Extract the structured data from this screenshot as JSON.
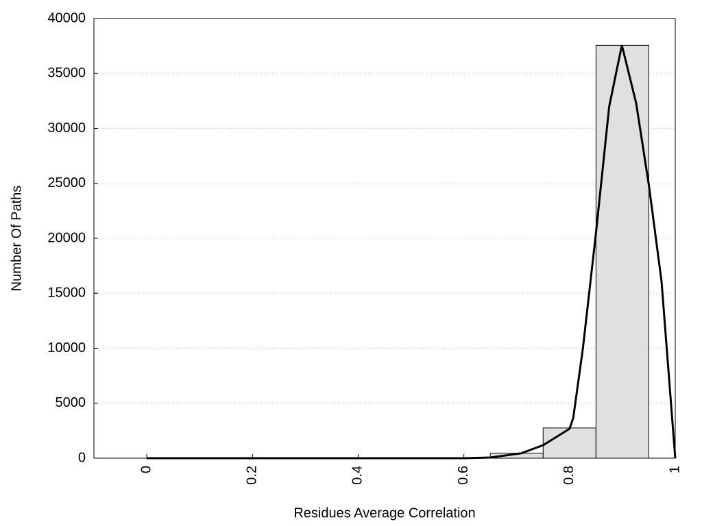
{
  "chart_data": {
    "type": "histogram",
    "x_label": "Residues Average Correlation",
    "y_label": "Number Of Paths",
    "bins": [
      -0.05,
      0.05,
      0.15,
      0.25,
      0.35,
      0.45,
      0.55,
      0.65,
      0.75,
      0.85,
      0.95
    ],
    "values": [
      0,
      0,
      0,
      0,
      0,
      0,
      0,
      450,
      2750,
      37550
    ],
    "color": "#e0e0e0",
    "line": {
      "color": "#000000",
      "x": [
        0,
        0.1,
        0.2,
        0.3,
        0.4,
        0.5,
        0.6,
        0.65,
        0.708,
        0.75,
        0.8,
        0.807,
        0.825,
        0.85,
        0.875,
        0.899,
        0.926,
        0.95,
        0.974,
        1
      ],
      "values": [
        0,
        0,
        0,
        0,
        0,
        0,
        0,
        60,
        440,
        1180,
        2680,
        3680,
        9900,
        20500,
        32000,
        37570,
        32300,
        24860,
        16100,
        0
      ]
    },
    "xlim": [
      -0.1,
      1
    ],
    "ylim": [
      0,
      40000
    ],
    "xticks": [
      0,
      0.2,
      0.4,
      0.6,
      0.8,
      1
    ],
    "yticks": [
      0,
      5000,
      10000,
      15000,
      20000,
      25000,
      30000,
      35000,
      40000
    ],
    "grid": true
  }
}
